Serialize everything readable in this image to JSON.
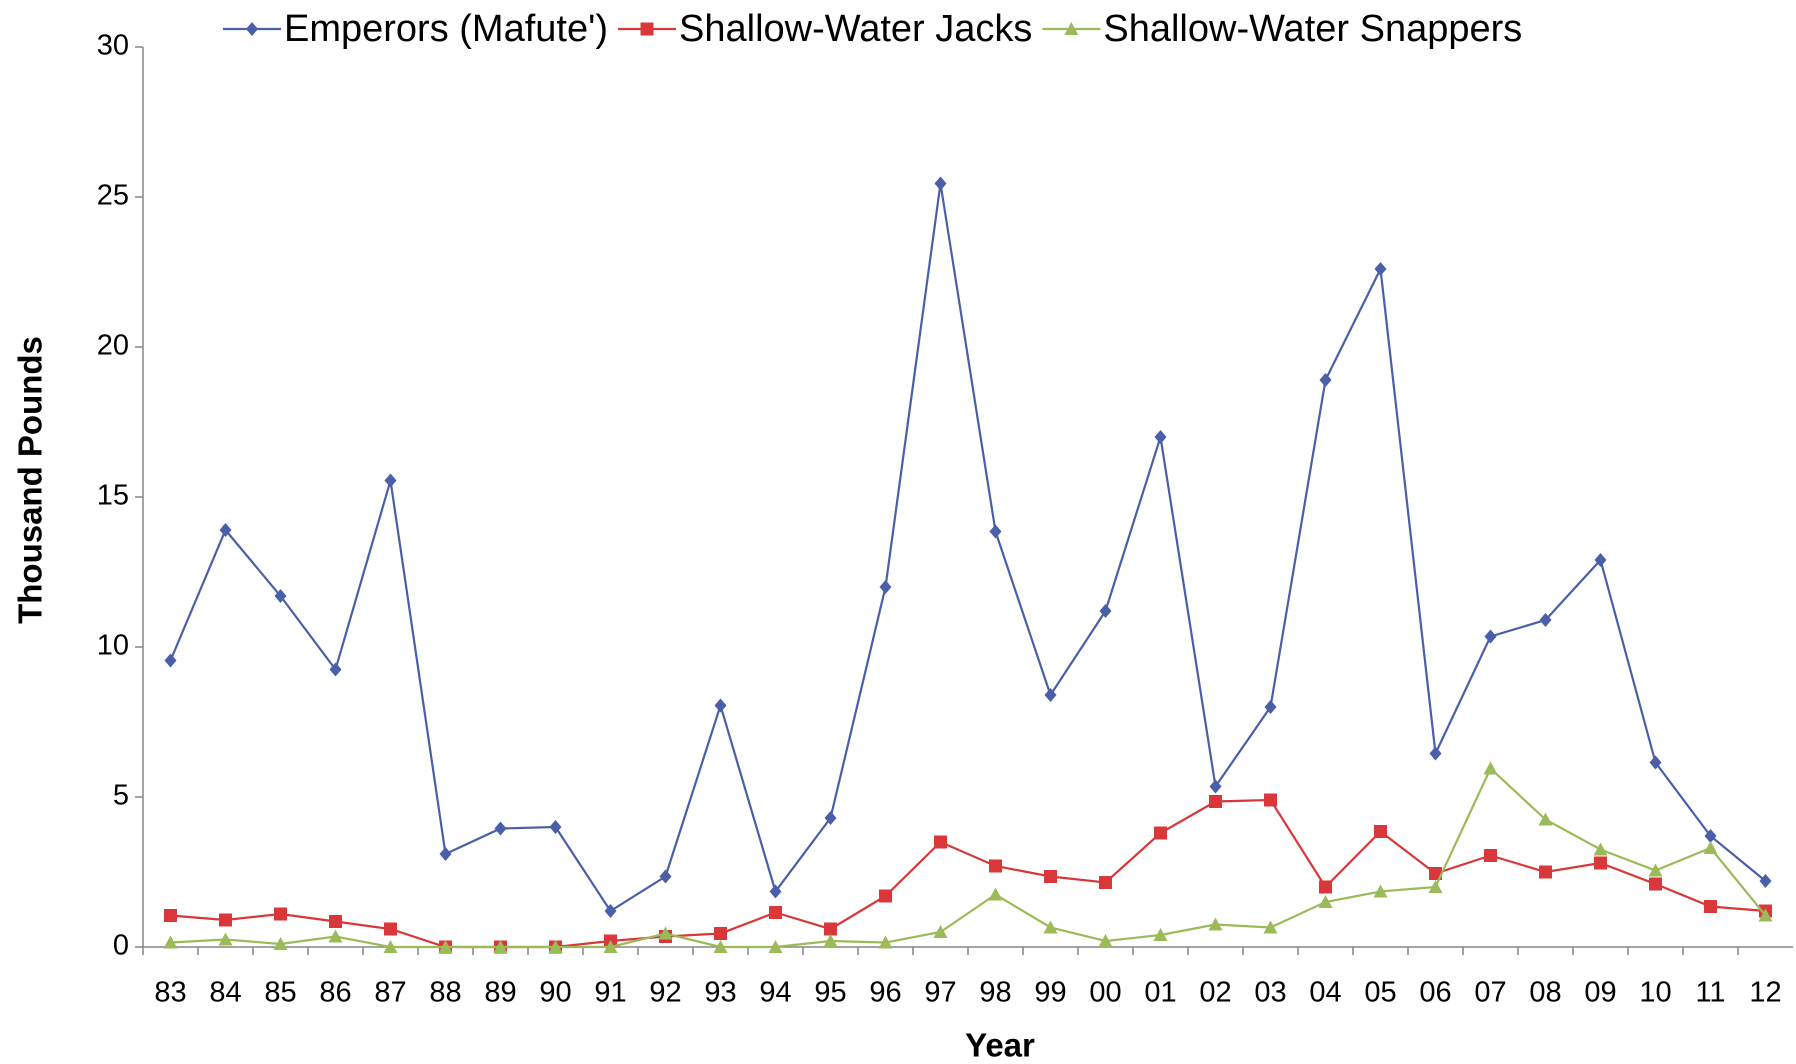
{
  "chart_data": {
    "type": "line",
    "categories": [
      "83",
      "84",
      "85",
      "86",
      "87",
      "88",
      "89",
      "90",
      "91",
      "92",
      "93",
      "94",
      "95",
      "96",
      "97",
      "98",
      "99",
      "00",
      "01",
      "02",
      "03",
      "04",
      "05",
      "06",
      "07",
      "08",
      "09",
      "10",
      "11",
      "12"
    ],
    "series": [
      {
        "name": "Emperors (Mafute')",
        "color": "#4a5fa8",
        "marker": "diamond",
        "values": [
          9.55,
          13.9,
          11.7,
          9.25,
          15.55,
          3.1,
          3.95,
          4.0,
          1.2,
          2.35,
          8.05,
          1.85,
          4.3,
          12.0,
          25.45,
          13.85,
          8.4,
          11.2,
          17.0,
          5.35,
          8.0,
          18.9,
          22.6,
          6.45,
          10.35,
          10.9,
          12.9,
          6.15,
          3.7,
          2.2
        ]
      },
      {
        "name": "Shallow-Water Jacks",
        "color": "#d9373a",
        "marker": "square",
        "values": [
          1.05,
          0.9,
          1.1,
          0.85,
          0.6,
          0,
          0,
          0,
          0.2,
          0.35,
          0.45,
          1.15,
          0.6,
          1.7,
          3.5,
          2.7,
          2.35,
          2.15,
          3.8,
          4.85,
          4.9,
          2.0,
          3.85,
          2.45,
          3.05,
          2.5,
          2.8,
          2.1,
          1.35,
          1.2
        ]
      },
      {
        "name": "Shallow-Water Snappers",
        "color": "#9bbb59",
        "marker": "triangle",
        "values": [
          0.15,
          0.25,
          0.1,
          0.35,
          0,
          0,
          0,
          0,
          0,
          0.45,
          0,
          0,
          0.2,
          0.15,
          0.5,
          1.75,
          0.65,
          0.2,
          0.4,
          0.75,
          0.65,
          1.5,
          1.85,
          2.0,
          5.95,
          4.25,
          3.25,
          2.55,
          3.3,
          1.05
        ]
      }
    ],
    "x_label": "Year",
    "y_label": "Thousand Pounds",
    "ylim": [
      0,
      30
    ],
    "yticks": [
      0,
      5,
      10,
      15,
      20,
      25,
      30
    ],
    "grid": false,
    "legend": "top"
  }
}
